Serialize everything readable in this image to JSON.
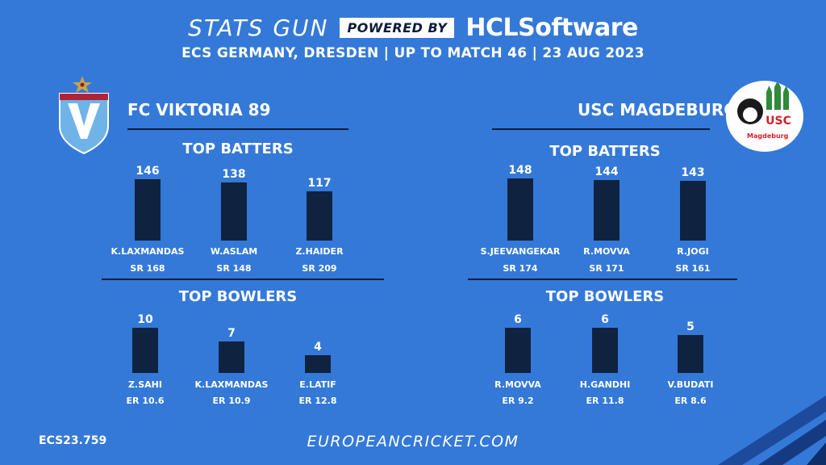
{
  "header": {
    "title_left": "STATS GUN",
    "powered_by": "POWERED BY",
    "brand_left": "HCL",
    "brand_right": "Software",
    "subtitle": "ECS GERMANY, DRESDEN | UP TO MATCH 46 | 23 AUG 2023"
  },
  "colors": {
    "background": "#3479d8",
    "bar": "#0f2340",
    "rule": "#0d1b3a",
    "usc_green": "#2e8b3a",
    "usc_red": "#d4202a"
  },
  "teams": [
    {
      "name": "FC VIKTORIA 89",
      "logo": "viktoria-shield-icon"
    },
    {
      "name": "USC MAGDEBURG",
      "logo": "usc-magdeburg-logo",
      "logo_text": "USC",
      "logo_subtext": "Magdeburg"
    }
  ],
  "sections": {
    "batters": "TOP BATTERS",
    "bowlers": "TOP BOWLERS"
  },
  "chart_data": [
    {
      "type": "bar",
      "title": "TOP BATTERS",
      "team": "FC VIKTORIA 89",
      "categories": [
        "K.LAXMANDAS",
        "W.ASLAM",
        "Z.HAIDER"
      ],
      "values": [
        146,
        138,
        117
      ],
      "labels": [
        "146",
        "138",
        "117"
      ],
      "sublabels": [
        "SR 168",
        "SR 148",
        "SR 209"
      ],
      "ylim": [
        0,
        150
      ]
    },
    {
      "type": "bar",
      "title": "TOP BOWLERS",
      "team": "FC VIKTORIA 89",
      "categories": [
        "Z.SAHI",
        "K.LAXMANDAS",
        "E.LATIF"
      ],
      "values": [
        10,
        7,
        4
      ],
      "labels": [
        "10",
        "7",
        "4"
      ],
      "sublabels": [
        "ER 10.6",
        "ER 10.9",
        "ER 12.8"
      ],
      "ylim": [
        0,
        10
      ]
    },
    {
      "type": "bar",
      "title": "TOP BATTERS",
      "team": "USC MAGDEBURG",
      "categories": [
        "S.JEEVANGEKAR",
        "R.MOVVA",
        "R.JOGI"
      ],
      "values": [
        148,
        144,
        143
      ],
      "labels": [
        "148",
        "144",
        "143"
      ],
      "sublabels": [
        "SR 174",
        "SR 171",
        "SR 161"
      ],
      "ylim": [
        0,
        150
      ]
    },
    {
      "type": "bar",
      "title": "TOP BOWLERS",
      "team": "USC MAGDEBURG",
      "categories": [
        "R.MOVVA",
        "H.GANDHI",
        "V.BUDATI"
      ],
      "values": [
        6,
        6,
        5
      ],
      "labels": [
        "6",
        "6",
        "5"
      ],
      "sublabels": [
        "ER 9.2",
        "ER 11.8",
        "ER 8.6"
      ],
      "ylim": [
        0,
        6
      ]
    }
  ],
  "footer": {
    "code": "ECS23.759",
    "url": "EUROPEANCRICKET.COM"
  }
}
